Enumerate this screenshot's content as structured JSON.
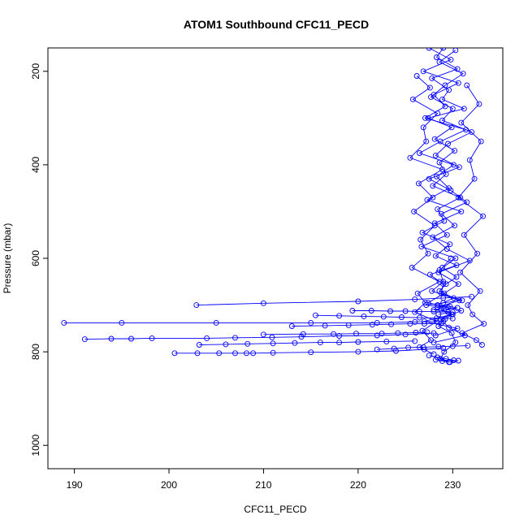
{
  "chart_data": {
    "type": "line",
    "title": "ATOM1 Southbound CFC11_PECD",
    "xlabel": "CFC11_PECD",
    "ylabel": "Pressure (mbar)",
    "xlim": [
      187.2,
      235.3
    ],
    "ylim": [
      1050,
      150
    ],
    "y_reversed": true,
    "x_ticks": [
      190,
      200,
      210,
      220,
      230
    ],
    "y_ticks": [
      200,
      400,
      600,
      800,
      1000
    ],
    "grid": false,
    "series_color": "#0000ff",
    "marker": "open-circle",
    "series": [
      {
        "x": [
          229.0,
          228.3,
          230.5,
          227.8,
          229.6,
          228.9,
          231.2,
          227.4,
          229.9,
          228.1,
          230.2,
          228.6,
          229.3,
          227.9,
          230.8,
          228.4,
          229.1,
          226.8,
          229.7,
          228.2,
          230.4,
          227.6,
          229.0,
          228.8,
          231.0,
          227.2,
          229.5,
          228.0,
          230.0,
          228.5
        ],
        "y": [
          150,
          170,
          195,
          215,
          240,
          260,
          280,
          300,
          320,
          345,
          370,
          395,
          420,
          445,
          470,
          495,
          520,
          545,
          570,
          595,
          615,
          635,
          655,
          675,
          690,
          700,
          705,
          710,
          715,
          720
        ]
      },
      {
        "x": [
          227.5,
          229.8,
          226.9,
          230.6,
          228.0,
          229.2,
          227.1,
          231.4,
          228.7,
          226.5,
          230.1,
          228.3,
          229.6,
          227.3,
          230.9,
          228.1,
          229.4,
          226.7,
          230.3,
          228.6,
          229.0,
          227.8,
          230.7,
          228.4,
          229.9,
          227.0,
          230.5,
          228.2
        ],
        "y": [
          150,
          175,
          200,
          225,
          250,
          275,
          300,
          325,
          350,
          375,
          400,
          425,
          450,
          475,
          500,
          525,
          550,
          575,
          600,
          625,
          650,
          670,
          690,
          705,
          720,
          735,
          750,
          765
        ]
      },
      {
        "x": [
          230.3,
          228.6,
          231.1,
          229.2,
          227.7,
          230.0,
          228.9,
          232.0,
          229.5,
          228.2,
          230.7,
          227.5,
          229.8,
          231.5,
          228.8,
          230.2,
          227.9,
          229.4,
          231.8,
          228.5,
          230.6,
          229.1,
          227.4,
          230.9,
          228.7,
          229.6,
          231.3,
          228.0
        ],
        "y": [
          155,
          180,
          205,
          230,
          255,
          280,
          305,
          330,
          355,
          380,
          405,
          430,
          455,
          480,
          505,
          530,
          555,
          580,
          605,
          630,
          655,
          675,
          695,
          712,
          730,
          748,
          765,
          780
        ]
      },
      {
        "x": [
          226.2,
          227.6,
          225.8,
          228.4,
          226.9,
          227.2,
          225.5,
          228.9,
          226.4,
          227.9,
          225.9,
          228.1,
          226.6,
          227.4,
          225.7,
          228.6,
          226.3,
          227.1,
          226.0,
          228.3,
          226.8,
          227.7,
          226.5,
          228.0
        ],
        "y": [
          210,
          235,
          260,
          290,
          320,
          350,
          385,
          410,
          440,
          470,
          500,
          530,
          560,
          590,
          620,
          650,
          675,
          695,
          715,
          735,
          755,
          775,
          790,
          805
        ]
      },
      {
        "x": [
          231.5,
          232.8,
          230.9,
          233.0,
          231.8,
          232.3,
          230.6,
          233.2,
          231.2,
          232.6,
          230.8,
          232.9,
          231.6,
          232.1,
          233.3,
          231.0,
          232.5,
          233.1
        ],
        "y": [
          230,
          270,
          310,
          350,
          390,
          430,
          470,
          510,
          550,
          590,
          630,
          670,
          700,
          720,
          740,
          760,
          775,
          785
        ]
      },
      {
        "x": [
          229.8,
          228.9,
          230.4,
          229.3,
          228.6,
          230.1,
          229.0,
          228.4,
          229.7,
          230.5,
          228.8,
          229.5,
          230.0,
          229.2,
          228.5,
          229.9,
          230.3,
          229.1,
          228.7,
          229.6
        ],
        "y": [
          600,
          620,
          640,
          655,
          670,
          685,
          695,
          700,
          703,
          706,
          710,
          715,
          720,
          730,
          745,
          760,
          780,
          800,
          815,
          822
        ]
      },
      {
        "x": [
          202.9,
          210.0,
          220.0,
          226.0,
          229.0,
          232.0
        ],
        "y": [
          700,
          696,
          692,
          688,
          685,
          682
        ]
      },
      {
        "x": [
          188.9,
          195.0,
          205.0,
          215.0,
          222.0,
          226.0,
          229.0
        ],
        "y": [
          738,
          738,
          738,
          738,
          738,
          736,
          735
        ]
      },
      {
        "x": [
          191.1,
          193.9,
          196.0,
          198.2,
          204.0,
          207.0,
          210.9,
          214.0,
          218.0,
          222.0,
          225.0,
          228.0
        ],
        "y": [
          773,
          772,
          772,
          771,
          771,
          770,
          769,
          768,
          766,
          765,
          763,
          760
        ]
      },
      {
        "x": [
          200.6,
          203.0,
          205.3,
          207.0,
          208.2,
          208.9,
          211.0,
          215.0,
          220.0,
          224.0,
          227.0,
          229.0
        ],
        "y": [
          803,
          803,
          803,
          803,
          803,
          803,
          802,
          801,
          800,
          798,
          795,
          792
        ]
      },
      {
        "x": [
          210.0,
          214.2,
          217.4,
          219.8,
          222.5,
          224.2,
          226.1,
          227.3
        ],
        "y": [
          763,
          762,
          762,
          761,
          761,
          760,
          759,
          758
        ]
      },
      {
        "x": [
          203.2,
          206.0,
          208.3,
          211.0,
          213.3,
          216.0,
          218.0,
          220.0,
          223.0,
          226.0
        ],
        "y": [
          785,
          784,
          783,
          782,
          781,
          780,
          780,
          779,
          778,
          777
        ]
      },
      {
        "x": [
          213.0,
          216.5,
          219.0,
          221.5,
          223.5,
          225.5,
          227.0,
          228.8
        ],
        "y": [
          745,
          744,
          743,
          742,
          741,
          740,
          740,
          739
        ]
      },
      {
        "x": [
          219.4,
          221.4,
          223.4,
          225.0,
          226.5,
          228.0,
          229.5
        ],
        "y": [
          712,
          712,
          713,
          713,
          714,
          714,
          715
        ]
      },
      {
        "x": [
          215.5,
          218.0,
          220.6,
          222.7,
          224.6,
          226.5,
          228.3,
          230.0
        ],
        "y": [
          722,
          723,
          724,
          725,
          726,
          727,
          728,
          729
        ]
      },
      {
        "x": [
          222.0,
          223.8,
          225.3,
          226.9,
          228.5,
          230.0,
          231.6
        ],
        "y": [
          795,
          793,
          791,
          790,
          789,
          788,
          787
        ]
      },
      {
        "x": [
          227.5,
          228.4,
          229.3,
          230.1,
          228.9,
          229.7,
          230.6,
          228.2
        ],
        "y": [
          808,
          812,
          815,
          818,
          820,
          822,
          819,
          817
        ]
      }
    ]
  }
}
